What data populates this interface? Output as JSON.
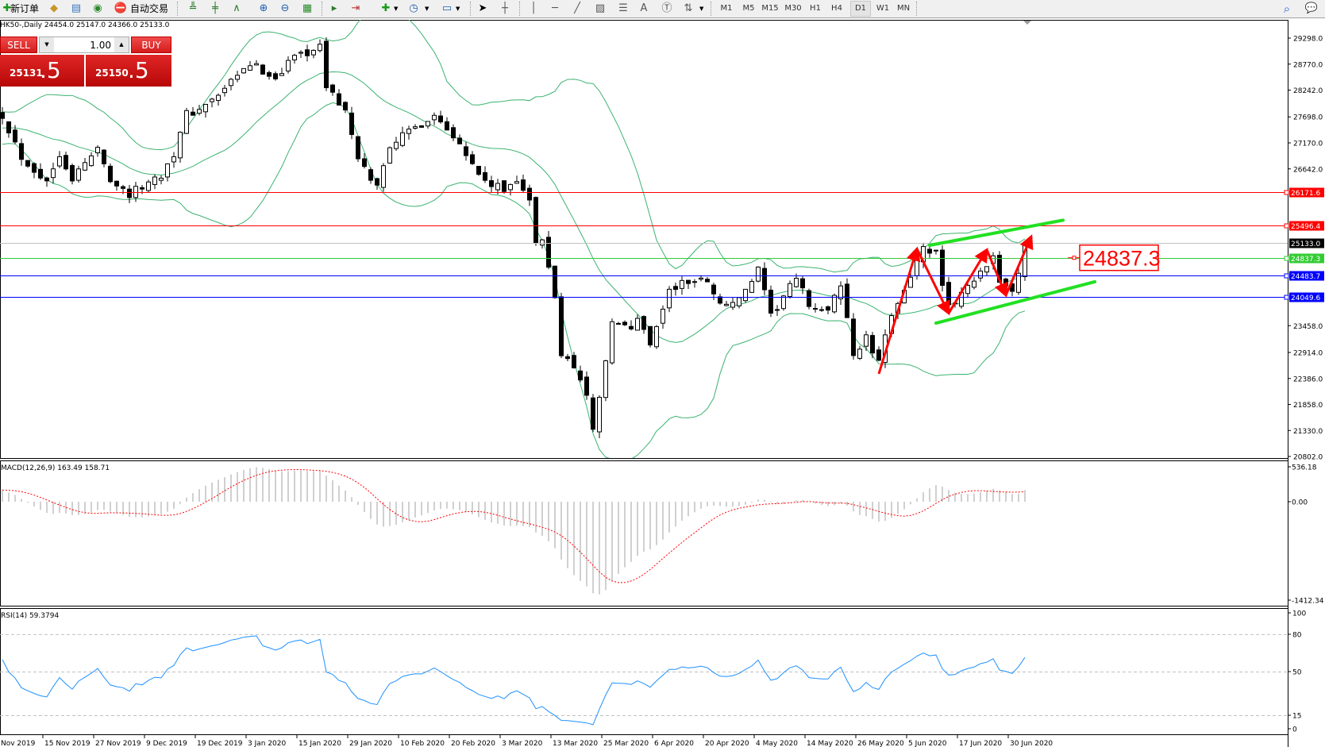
{
  "toolbar": {
    "new_order": "新订单",
    "auto_trading": "自动交易",
    "timeframes": [
      "M1",
      "M5",
      "M15",
      "M30",
      "H1",
      "H4",
      "D1",
      "W1",
      "MN"
    ],
    "active_timeframe": "D1"
  },
  "chart_header": {
    "symbol_line": "HK50-,Daily 24454.0 25147.0 24366.0 25133.0"
  },
  "trade_panel": {
    "sell_label": "SELL",
    "buy_label": "BUY",
    "volume": "1.00",
    "sell_price_main": "25131",
    "sell_price_frac": ".5",
    "buy_price_main": "25150",
    "buy_price_frac": ".5"
  },
  "colors": {
    "bull_body": "#ffffff",
    "bear_body": "#000000",
    "bollinger": "#3cb371",
    "macd_histogram": "#a0a0a0",
    "macd_signal": "#ff0000",
    "rsi_line": "#1e90ff",
    "channel_lines": "#22e022",
    "arrows": "#ff0000"
  },
  "chart_data": [
    {
      "type": "candlestick",
      "symbol": "HK50-",
      "timeframe": "Daily",
      "last_bar": {
        "open": 24454.0,
        "high": 25147.0,
        "low": 24366.0,
        "close": 25133.0
      },
      "close_path": [
        [
          0,
          27740
        ],
        [
          3,
          26890
        ],
        [
          7,
          26375
        ],
        [
          9,
          26970
        ],
        [
          11,
          26455
        ],
        [
          15,
          27050
        ],
        [
          17,
          26455
        ],
        [
          20,
          26118
        ],
        [
          25,
          26535
        ],
        [
          27,
          26970
        ],
        [
          29,
          27740
        ],
        [
          32,
          27917
        ],
        [
          35,
          28255
        ],
        [
          39,
          28768
        ],
        [
          43,
          28500
        ],
        [
          46,
          28945
        ],
        [
          50,
          29105
        ],
        [
          51,
          28335
        ],
        [
          54,
          27820
        ],
        [
          56,
          26790
        ],
        [
          59,
          26280
        ],
        [
          61,
          27145
        ],
        [
          65,
          27480
        ],
        [
          68,
          27740
        ],
        [
          72,
          27225
        ],
        [
          74,
          26710
        ],
        [
          76,
          26375
        ],
        [
          79,
          26200
        ],
        [
          81,
          26455
        ],
        [
          83,
          26020
        ],
        [
          84,
          25090
        ],
        [
          85,
          25170
        ],
        [
          87,
          24060
        ],
        [
          88,
          22860
        ],
        [
          90,
          22680
        ],
        [
          92,
          22005
        ],
        [
          93,
          21400
        ],
        [
          95,
          22680
        ],
        [
          96,
          23550
        ],
        [
          99,
          23370
        ],
        [
          100,
          23630
        ],
        [
          102,
          23115
        ],
        [
          105,
          24155
        ],
        [
          107,
          24320
        ],
        [
          111,
          24400
        ],
        [
          113,
          23890
        ],
        [
          116,
          23970
        ],
        [
          119,
          24575
        ],
        [
          121,
          23630
        ],
        [
          123,
          24060
        ],
        [
          125,
          24400
        ],
        [
          127,
          23900
        ],
        [
          130,
          23710
        ],
        [
          132,
          24320
        ],
        [
          134,
          22860
        ],
        [
          136,
          23200
        ],
        [
          138,
          22680
        ],
        [
          140,
          23710
        ],
        [
          142,
          24225
        ],
        [
          145,
          25000
        ],
        [
          147,
          24915
        ],
        [
          148,
          24225
        ],
        [
          149,
          23810
        ],
        [
          152,
          24320
        ],
        [
          155,
          24575
        ],
        [
          156,
          24835
        ],
        [
          157,
          24400
        ],
        [
          159,
          24155
        ],
        [
          160,
          24454
        ],
        [
          161,
          25133
        ]
      ],
      "y_range": [
        20802,
        29298
      ],
      "y_ticks": [
        "29298.0",
        "28770.0",
        "28242.0",
        "27698.0",
        "27170.0",
        "26642.0",
        "23458.0",
        "22914.0",
        "22386.0",
        "21858.0",
        "21330.0",
        "20802.0"
      ],
      "x_ticks": [
        "Nov 2019",
        "15 Nov 2019",
        "27 Nov 2019",
        "9 Dec 2019",
        "19 Dec 2019",
        "3 Jan 2020",
        "15 Jan 2020",
        "29 Jan 2020",
        "10 Feb 2020",
        "20 Feb 2020",
        "3 Mar 2020",
        "13 Mar 2020",
        "25 Mar 2020",
        "6 Apr 2020",
        "20 Apr 2020",
        "4 May 2020",
        "14 May 2020",
        "26 May 2020",
        "5 Jun 2020",
        "17 Jun 2020",
        "30 Jun 2020"
      ],
      "indicator": "Bollinger Bands",
      "horizontal_levels": [
        {
          "value": 26171.6,
          "label": "26171.6",
          "color": "#ff0000"
        },
        {
          "value": 25496.4,
          "label": "25496.4",
          "color": "#ff0000"
        },
        {
          "value": 25133.0,
          "label": "25133.0",
          "color": "#000000",
          "line_color": "#c0c0c0"
        },
        {
          "value": 24837.3,
          "label": "24837.3",
          "color": "#33cc33"
        },
        {
          "value": 24483.7,
          "label": "24483.7",
          "color": "#0000ff"
        },
        {
          "value": 24049.6,
          "label": "24049.6",
          "color": "#0000ff"
        }
      ],
      "annotation_label": "24837.3",
      "channel_lines": [
        {
          "from": [
            146,
            25090
          ],
          "to": [
            167,
            25600
          ]
        },
        {
          "from": [
            147,
            23510
          ],
          "to": [
            172,
            24350
          ]
        }
      ],
      "zigzag_arrows": [
        [
          138,
          22480
        ],
        [
          144,
          25020
        ],
        [
          149,
          23710
        ],
        [
          155,
          25000
        ],
        [
          158,
          24075
        ],
        [
          162,
          25270
        ]
      ]
    },
    {
      "type": "bar",
      "title": "MACD(12,26,9) 163.49 158.71",
      "y_ticks": [
        "536.18",
        "0.00",
        "-1412.34"
      ],
      "y_range": [
        -1412.34,
        536.18
      ],
      "series": [
        "histogram",
        "signal"
      ]
    },
    {
      "type": "line",
      "title": "RSI(14) 59.3794",
      "y_ticks": [
        "100",
        "80",
        "50",
        "15",
        "0"
      ],
      "levels": [
        80,
        50,
        15
      ],
      "y_range": [
        0,
        100
      ]
    }
  ]
}
